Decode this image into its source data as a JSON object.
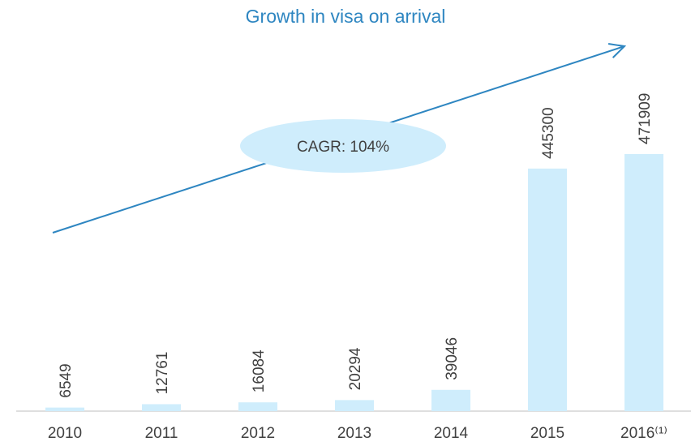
{
  "chart_data": {
    "type": "bar",
    "title": "Growth in visa on arrival",
    "categories": [
      "2010",
      "2011",
      "2012",
      "2013",
      "2014",
      "2015",
      "2016⁽¹⁾"
    ],
    "values": [
      6549,
      12761,
      16084,
      20294,
      39046,
      445300,
      471909
    ],
    "color": "#cfedfc",
    "annotation": "CAGR: 104%"
  }
}
